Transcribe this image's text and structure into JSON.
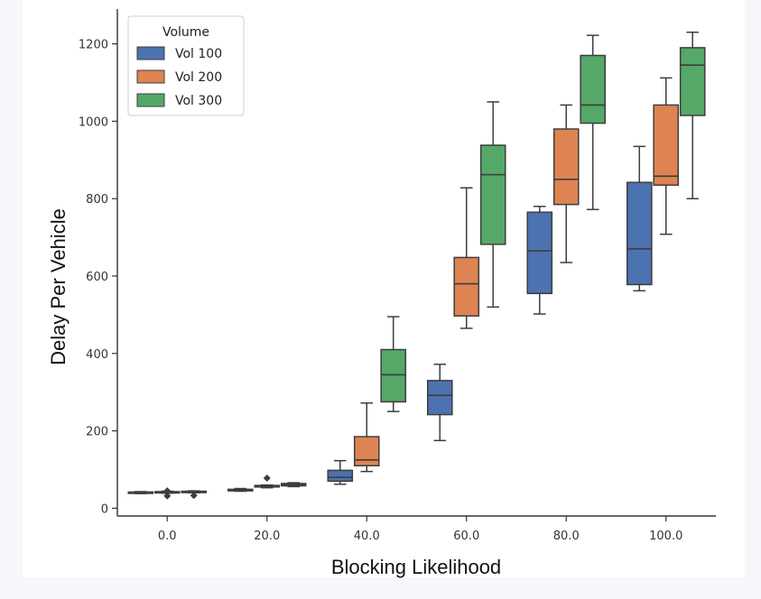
{
  "chart_data": {
    "type": "box",
    "title": "",
    "xlabel": "Blocking Likelihood",
    "ylabel": "Delay Per Vehicle",
    "ylim": [
      -20,
      1290
    ],
    "y_ticks": [
      0,
      200,
      400,
      600,
      800,
      1000,
      1200
    ],
    "categories": [
      "0.0",
      "20.0",
      "40.0",
      "60.0",
      "80.0",
      "100.0"
    ],
    "legend": {
      "title": "Volume",
      "placement": "top-left"
    },
    "series": [
      {
        "name": "Vol 100",
        "color": "#4c72b0",
        "boxes": [
          {
            "min": 38,
            "q1": 39,
            "median": 40,
            "q3": 42,
            "max": 43,
            "outliers": []
          },
          {
            "min": 44,
            "q1": 45,
            "median": 47,
            "q3": 49,
            "max": 51,
            "outliers": []
          },
          {
            "min": 62,
            "q1": 70,
            "median": 80,
            "q3": 98,
            "max": 123,
            "outliers": []
          },
          {
            "min": 175,
            "q1": 242,
            "median": 292,
            "q3": 330,
            "max": 372,
            "outliers": []
          },
          {
            "min": 502,
            "q1": 555,
            "median": 665,
            "q3": 765,
            "max": 780,
            "outliers": []
          },
          {
            "min": 562,
            "q1": 578,
            "median": 670,
            "q3": 842,
            "max": 935,
            "outliers": []
          }
        ]
      },
      {
        "name": "Vol 200",
        "color": "#dd8452",
        "boxes": [
          {
            "min": 39,
            "q1": 40,
            "median": 41,
            "q3": 43,
            "max": 44,
            "outliers": [
              32,
              45
            ]
          },
          {
            "min": 53,
            "q1": 55,
            "median": 57,
            "q3": 59,
            "max": 60,
            "outliers": [
              78
            ]
          },
          {
            "min": 95,
            "q1": 110,
            "median": 125,
            "q3": 185,
            "max": 272,
            "outliers": []
          },
          {
            "min": 465,
            "q1": 497,
            "median": 580,
            "q3": 648,
            "max": 828,
            "outliers": []
          },
          {
            "min": 635,
            "q1": 785,
            "median": 850,
            "q3": 980,
            "max": 1042,
            "outliers": []
          },
          {
            "min": 708,
            "q1": 835,
            "median": 858,
            "q3": 1042,
            "max": 1112,
            "outliers": []
          }
        ]
      },
      {
        "name": "Vol 300",
        "color": "#55a868",
        "boxes": [
          {
            "min": 40,
            "q1": 41,
            "median": 42,
            "q3": 44,
            "max": 45,
            "outliers": [
              33
            ]
          },
          {
            "min": 56,
            "q1": 58,
            "median": 61,
            "q3": 64,
            "max": 66,
            "outliers": []
          },
          {
            "min": 250,
            "q1": 275,
            "median": 345,
            "q3": 410,
            "max": 495,
            "outliers": []
          },
          {
            "min": 520,
            "q1": 682,
            "median": 862,
            "q3": 938,
            "max": 1050,
            "outliers": []
          },
          {
            "min": 772,
            "q1": 995,
            "median": 1042,
            "q3": 1170,
            "max": 1222,
            "outliers": []
          },
          {
            "min": 800,
            "q1": 1015,
            "median": 1145,
            "q3": 1190,
            "max": 1230,
            "outliers": []
          }
        ]
      }
    ]
  }
}
